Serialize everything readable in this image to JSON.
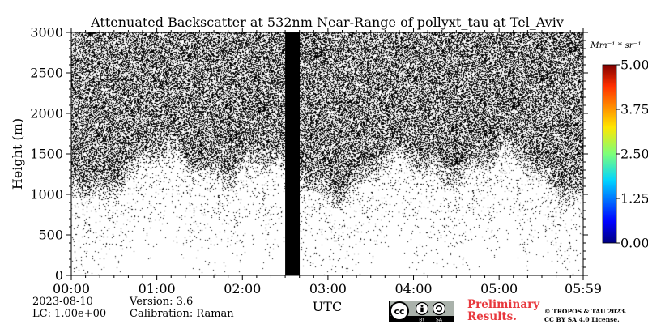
{
  "chart_data": {
    "type": "heatmap",
    "title": "Attenuated Backscatter at 532nm Near-Range of pollyxt_tau at Tel_Aviv",
    "xlabel": "UTC",
    "ylabel": "Height (m)",
    "x_ticks": [
      "00:00",
      "01:00",
      "02:00",
      "03:00",
      "04:00",
      "05:00",
      "05:59"
    ],
    "x_range_hours": [
      0,
      5.983
    ],
    "y_ticks": [
      0,
      500,
      1000,
      1500,
      2000,
      2500,
      3000
    ],
    "ylim": [
      0,
      3000
    ],
    "colorbar": {
      "unit_label": "Mm⁻¹ * sr⁻¹",
      "ticks": [
        "0.00",
        "1.25",
        "2.50",
        "3.75",
        "5.00"
      ],
      "range": [
        0,
        5
      ],
      "colormap": "jet"
    },
    "no_data_interval_hours": [
      2.5,
      2.67
    ],
    "signal_base_height_m": 1150,
    "signal_top_height_m": 3000
  },
  "meta": {
    "date": "2023-08-10",
    "lc": "LC: 1.00e+00",
    "version": "Version: 3.6",
    "calibration": "Calibration: Raman",
    "preliminary_line1": "Preliminary",
    "preliminary_line2": "Results.",
    "copyright_line1": "© TROPOS & TAU 2023.",
    "copyright_line2": "CC BY SA 4.0 License.",
    "badge_by": "BY",
    "badge_sa": "SA"
  },
  "colors": {
    "nodata_band": "#000000",
    "noise": "#000000",
    "background": "#ffffff",
    "preliminary": "#e8383d"
  }
}
